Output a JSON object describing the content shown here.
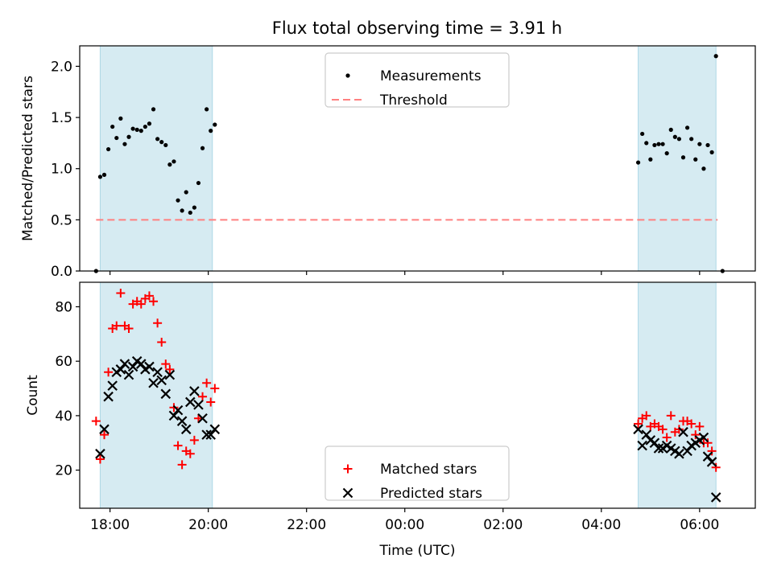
{
  "colors": {
    "night_band": "#add8e6",
    "threshold": "#ff8080",
    "matched": "#ff0000",
    "predicted": "#000000",
    "measurement": "#000000"
  },
  "chart_data": [
    {
      "type": "scatter",
      "title": "Flux total observing time = 3.91 h",
      "ylabel": "Matched/Predicted stars",
      "xlabel": "",
      "xlim": [
        "17:23",
        "07:08"
      ],
      "ylim": [
        0,
        2.2
      ],
      "yticks": [
        "0.0",
        "0.5",
        "1.0",
        "1.5",
        "2.0"
      ],
      "legend_placement": "top-center",
      "grid": false,
      "shaded_intervals": [
        [
          "17:48",
          "20:05"
        ],
        [
          "04:45",
          "06:20"
        ]
      ],
      "threshold": {
        "name": "Threshold",
        "y": 0.5,
        "x_range": [
          "17:43",
          "06:22"
        ],
        "style": "dashed"
      },
      "series": [
        {
          "name": "Measurements",
          "marker": "dot",
          "points": [
            [
              "17:43",
              0.0
            ],
            [
              "17:48",
              0.92
            ],
            [
              "17:53",
              0.94
            ],
            [
              "17:58",
              1.19
            ],
            [
              "18:03",
              1.41
            ],
            [
              "18:08",
              1.3
            ],
            [
              "18:13",
              1.49
            ],
            [
              "18:18",
              1.24
            ],
            [
              "18:23",
              1.31
            ],
            [
              "18:28",
              1.39
            ],
            [
              "18:33",
              1.38
            ],
            [
              "18:38",
              1.37
            ],
            [
              "18:43",
              1.41
            ],
            [
              "18:48",
              1.44
            ],
            [
              "18:53",
              1.58
            ],
            [
              "18:58",
              1.29
            ],
            [
              "19:03",
              1.26
            ],
            [
              "19:08",
              1.23
            ],
            [
              "19:13",
              1.04
            ],
            [
              "19:18",
              1.07
            ],
            [
              "19:23",
              0.69
            ],
            [
              "19:28",
              0.59
            ],
            [
              "19:33",
              0.77
            ],
            [
              "19:38",
              0.57
            ],
            [
              "19:43",
              0.62
            ],
            [
              "19:48",
              0.86
            ],
            [
              "19:53",
              1.2
            ],
            [
              "19:58",
              1.58
            ],
            [
              "20:03",
              1.37
            ],
            [
              "20:08",
              1.43
            ],
            [
              "04:45",
              1.06
            ],
            [
              "04:50",
              1.34
            ],
            [
              "04:55",
              1.25
            ],
            [
              "05:00",
              1.09
            ],
            [
              "05:05",
              1.23
            ],
            [
              "05:10",
              1.24
            ],
            [
              "05:15",
              1.24
            ],
            [
              "05:20",
              1.15
            ],
            [
              "05:25",
              1.38
            ],
            [
              "05:30",
              1.31
            ],
            [
              "05:35",
              1.29
            ],
            [
              "05:40",
              1.11
            ],
            [
              "05:45",
              1.4
            ],
            [
              "05:50",
              1.29
            ],
            [
              "05:55",
              1.09
            ],
            [
              "06:00",
              1.24
            ],
            [
              "06:05",
              1.0
            ],
            [
              "06:10",
              1.23
            ],
            [
              "06:15",
              1.16
            ],
            [
              "06:20",
              2.1
            ],
            [
              "06:28",
              0.0
            ]
          ]
        }
      ]
    },
    {
      "type": "scatter",
      "title": "",
      "ylabel": "Count",
      "xlabel": "Time (UTC)",
      "xlim": [
        "17:23",
        "07:08"
      ],
      "ylim": [
        6,
        89
      ],
      "yticks": [
        "20",
        "40",
        "60",
        "80"
      ],
      "xticks": [
        "18:00",
        "20:00",
        "22:00",
        "00:00",
        "02:00",
        "04:00",
        "06:00"
      ],
      "legend_placement": "bottom-center",
      "grid": false,
      "shaded_intervals": [
        [
          "17:48",
          "20:05"
        ],
        [
          "04:45",
          "06:20"
        ]
      ],
      "series": [
        {
          "name": "Matched stars",
          "marker": "plus",
          "points": [
            [
              "17:43",
              38
            ],
            [
              "17:48",
              24
            ],
            [
              "17:53",
              33
            ],
            [
              "17:58",
              56
            ],
            [
              "18:03",
              72
            ],
            [
              "18:08",
              73
            ],
            [
              "18:13",
              85
            ],
            [
              "18:18",
              73
            ],
            [
              "18:23",
              72
            ],
            [
              "18:28",
              81
            ],
            [
              "18:33",
              82
            ],
            [
              "18:38",
              81
            ],
            [
              "18:43",
              83
            ],
            [
              "18:48",
              84
            ],
            [
              "18:53",
              82
            ],
            [
              "18:58",
              74
            ],
            [
              "19:03",
              67
            ],
            [
              "19:08",
              59
            ],
            [
              "19:13",
              57
            ],
            [
              "19:18",
              43
            ],
            [
              "19:23",
              29
            ],
            [
              "19:28",
              22
            ],
            [
              "19:33",
              27
            ],
            [
              "19:38",
              26
            ],
            [
              "19:43",
              31
            ],
            [
              "19:48",
              39
            ],
            [
              "19:53",
              47
            ],
            [
              "19:58",
              52
            ],
            [
              "20:03",
              45
            ],
            [
              "20:08",
              50
            ],
            [
              "04:45",
              37
            ],
            [
              "04:50",
              39
            ],
            [
              "04:55",
              40
            ],
            [
              "05:00",
              36
            ],
            [
              "05:05",
              37
            ],
            [
              "05:10",
              36
            ],
            [
              "05:15",
              35
            ],
            [
              "05:20",
              32
            ],
            [
              "05:25",
              40
            ],
            [
              "05:30",
              34
            ],
            [
              "05:35",
              35
            ],
            [
              "05:40",
              38
            ],
            [
              "05:45",
              38
            ],
            [
              "05:50",
              37
            ],
            [
              "05:55",
              33
            ],
            [
              "06:00",
              36
            ],
            [
              "06:05",
              30
            ],
            [
              "06:10",
              30
            ],
            [
              "06:15",
              27
            ],
            [
              "06:20",
              21
            ]
          ]
        },
        {
          "name": "Predicted stars",
          "marker": "x",
          "points": [
            [
              "17:48",
              26
            ],
            [
              "17:53",
              35
            ],
            [
              "17:58",
              47
            ],
            [
              "18:03",
              51
            ],
            [
              "18:08",
              56
            ],
            [
              "18:13",
              57
            ],
            [
              "18:18",
              59
            ],
            [
              "18:23",
              55
            ],
            [
              "18:28",
              58
            ],
            [
              "18:33",
              60
            ],
            [
              "18:38",
              59
            ],
            [
              "18:43",
              57
            ],
            [
              "18:48",
              58
            ],
            [
              "18:53",
              52
            ],
            [
              "18:58",
              56
            ],
            [
              "19:03",
              53
            ],
            [
              "19:08",
              48
            ],
            [
              "19:13",
              55
            ],
            [
              "19:18",
              40
            ],
            [
              "19:23",
              42
            ],
            [
              "19:28",
              38
            ],
            [
              "19:33",
              35
            ],
            [
              "19:38",
              45
            ],
            [
              "19:43",
              49
            ],
            [
              "19:48",
              44
            ],
            [
              "19:53",
              39
            ],
            [
              "19:58",
              33
            ],
            [
              "20:03",
              33
            ],
            [
              "20:08",
              35
            ],
            [
              "04:45",
              35
            ],
            [
              "04:50",
              29
            ],
            [
              "04:55",
              33
            ],
            [
              "05:00",
              31
            ],
            [
              "05:05",
              30
            ],
            [
              "05:10",
              28
            ],
            [
              "05:15",
              28
            ],
            [
              "05:20",
              29
            ],
            [
              "05:25",
              28
            ],
            [
              "05:30",
              27
            ],
            [
              "05:35",
              26
            ],
            [
              "05:40",
              34
            ],
            [
              "05:45",
              27
            ],
            [
              "05:50",
              29
            ],
            [
              "05:55",
              30
            ],
            [
              "06:00",
              31
            ],
            [
              "06:05",
              32
            ],
            [
              "06:10",
              25
            ],
            [
              "06:15",
              23
            ],
            [
              "06:20",
              10
            ]
          ]
        }
      ]
    }
  ]
}
